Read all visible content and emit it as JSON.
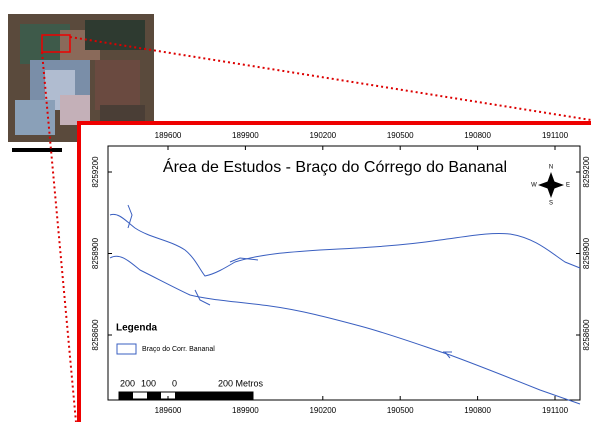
{
  "map": {
    "title": "Área de Estudos - Braço do Córrego do Bananal",
    "xticks": [
      189600,
      189900,
      190200,
      190500,
      190800,
      191100
    ],
    "yticks": [
      8259200,
      8258900,
      8258600
    ],
    "compass": {
      "n": "N",
      "e": "E",
      "s": "S",
      "w": "W"
    },
    "legend": {
      "title": "Legenda",
      "item": "Braço do Corr. Bananal"
    },
    "scale": [
      "200",
      "100",
      "0",
      "200 Metros"
    ]
  }
}
